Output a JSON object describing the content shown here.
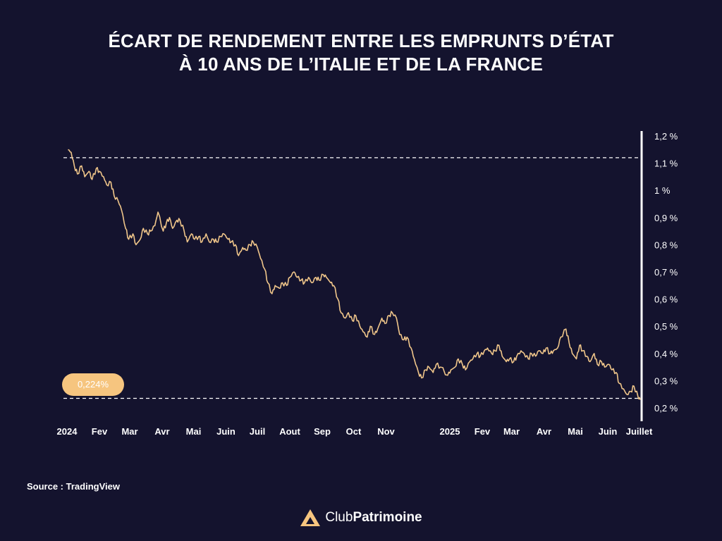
{
  "title": {
    "line1": "ÉCART DE RENDEMENT ENTRE LES EMPRUNTS D’ÉTAT",
    "line2": "À 10 ANS DE L’ITALIE ET DE LA FRANCE"
  },
  "last_value_label": "0,224%",
  "source": "Source : TradingView",
  "brand": {
    "part1": "Club",
    "part2": "Patrimoine"
  },
  "colors": {
    "background": "#14132e",
    "line": "#f0c68a",
    "badge": "#f6c57f",
    "logo": "#f6c57f"
  },
  "chart_data": {
    "type": "line",
    "title": "ÉCART DE RENDEMENT ENTRE LES EMPRUNTS D’ÉTAT À 10 ANS DE L’ITALIE ET DE LA FRANCE",
    "xlabel": "",
    "ylabel": "",
    "y_axis_side": "right",
    "ylim": [
      0.2,
      1.2
    ],
    "y_ticks": [
      1.2,
      1.1,
      1.0,
      0.9,
      0.8,
      0.7,
      0.6,
      0.5,
      0.4,
      0.3,
      0.2
    ],
    "y_tick_labels": [
      "1,2 %",
      "1,1 %",
      "1 %",
      "0,9 %",
      "0,8 %",
      "0,7 %",
      "0,6 %",
      "0,5 %",
      "0,4 %",
      "0,3 %",
      "0,2 %"
    ],
    "x_tick_labels": [
      "2024",
      "Fev",
      "Mar",
      "Avr",
      "Mai",
      "Juin",
      "Juil",
      "Aout",
      "Sep",
      "Oct",
      "Nov",
      "2025",
      "Fev",
      "Mar",
      "Avr",
      "Mai",
      "Juin",
      "Juillet"
    ],
    "x_tick_dates": [
      "2024-01-01",
      "2024-02-01",
      "2024-03-01",
      "2024-04-01",
      "2024-05-01",
      "2024-06-01",
      "2024-07-01",
      "2024-08-01",
      "2024-09-01",
      "2024-10-01",
      "2024-11-01",
      "2025-01-01",
      "2025-02-01",
      "2025-03-01",
      "2025-04-01",
      "2025-05-01",
      "2025-06-01",
      "2025-07-01"
    ],
    "reference_lines": [
      {
        "value": 1.12,
        "style": "dashed"
      },
      {
        "value": 0.235,
        "style": "dashed"
      }
    ],
    "last_value": 0.224,
    "series": [
      {
        "x": [
          "2024-01-02",
          "2024-01-05",
          "2024-01-08",
          "2024-01-11",
          "2024-01-15",
          "2024-01-18",
          "2024-01-22",
          "2024-01-25",
          "2024-01-29",
          "2024-02-01",
          "2024-02-05",
          "2024-02-08",
          "2024-02-12",
          "2024-02-15",
          "2024-02-19",
          "2024-02-22",
          "2024-02-26",
          "2024-02-29",
          "2024-03-04",
          "2024-03-07",
          "2024-03-11",
          "2024-03-14",
          "2024-03-18",
          "2024-03-21",
          "2024-03-25",
          "2024-03-28",
          "2024-04-02",
          "2024-04-05",
          "2024-04-08",
          "2024-04-11",
          "2024-04-15",
          "2024-04-18",
          "2024-04-22",
          "2024-04-25",
          "2024-04-29",
          "2024-05-02",
          "2024-05-06",
          "2024-05-09",
          "2024-05-13",
          "2024-05-16",
          "2024-05-20",
          "2024-05-23",
          "2024-05-27",
          "2024-05-30",
          "2024-06-03",
          "2024-06-06",
          "2024-06-10",
          "2024-06-13",
          "2024-06-17",
          "2024-06-20",
          "2024-06-24",
          "2024-06-27",
          "2024-07-01",
          "2024-07-04",
          "2024-07-08",
          "2024-07-11",
          "2024-07-15",
          "2024-07-18",
          "2024-07-22",
          "2024-07-25",
          "2024-07-29",
          "2024-08-01",
          "2024-08-05",
          "2024-08-08",
          "2024-08-12",
          "2024-08-15",
          "2024-08-19",
          "2024-08-22",
          "2024-08-26",
          "2024-08-29",
          "2024-09-02",
          "2024-09-05",
          "2024-09-09",
          "2024-09-12",
          "2024-09-16",
          "2024-09-19",
          "2024-09-23",
          "2024-09-26",
          "2024-09-30",
          "2024-10-03",
          "2024-10-07",
          "2024-10-10",
          "2024-10-14",
          "2024-10-17",
          "2024-10-21",
          "2024-10-24",
          "2024-10-28",
          "2024-10-31",
          "2024-11-04",
          "2024-11-07",
          "2024-11-11",
          "2024-11-14",
          "2024-11-18",
          "2024-11-21",
          "2024-11-25",
          "2024-11-28",
          "2024-12-02",
          "2024-12-05",
          "2024-12-09",
          "2024-12-12",
          "2024-12-16",
          "2024-12-19",
          "2024-12-23",
          "2024-12-30",
          "2025-01-02",
          "2025-01-06",
          "2025-01-09",
          "2025-01-13",
          "2025-01-16",
          "2025-01-20",
          "2025-01-23",
          "2025-01-27",
          "2025-01-30",
          "2025-02-03",
          "2025-02-06",
          "2025-02-10",
          "2025-02-13",
          "2025-02-17",
          "2025-02-20",
          "2025-02-24",
          "2025-02-27",
          "2025-03-03",
          "2025-03-06",
          "2025-03-10",
          "2025-03-13",
          "2025-03-17",
          "2025-03-20",
          "2025-03-24",
          "2025-03-27",
          "2025-03-31",
          "2025-04-03",
          "2025-04-07",
          "2025-04-10",
          "2025-04-14",
          "2025-04-17",
          "2025-04-22",
          "2025-04-25",
          "2025-04-28",
          "2025-05-02",
          "2025-05-05",
          "2025-05-08",
          "2025-05-12",
          "2025-05-15",
          "2025-05-19",
          "2025-05-22",
          "2025-05-26",
          "2025-05-29",
          "2025-06-02",
          "2025-06-05",
          "2025-06-09",
          "2025-06-12",
          "2025-06-16",
          "2025-06-19",
          "2025-06-23",
          "2025-06-26",
          "2025-06-30",
          "2025-07-02"
        ],
        "y": [
          1.15,
          1.14,
          1.09,
          1.06,
          1.09,
          1.05,
          1.07,
          1.04,
          1.08,
          1.07,
          1.05,
          1.02,
          1.03,
          0.98,
          0.96,
          0.93,
          0.86,
          0.82,
          0.84,
          0.8,
          0.82,
          0.86,
          0.84,
          0.85,
          0.87,
          0.92,
          0.85,
          0.88,
          0.9,
          0.86,
          0.89,
          0.89,
          0.85,
          0.81,
          0.84,
          0.82,
          0.83,
          0.81,
          0.84,
          0.81,
          0.82,
          0.81,
          0.83,
          0.84,
          0.82,
          0.81,
          0.8,
          0.76,
          0.79,
          0.78,
          0.8,
          0.81,
          0.79,
          0.75,
          0.71,
          0.66,
          0.62,
          0.65,
          0.64,
          0.66,
          0.65,
          0.68,
          0.7,
          0.68,
          0.67,
          0.66,
          0.68,
          0.66,
          0.68,
          0.67,
          0.69,
          0.68,
          0.66,
          0.65,
          0.6,
          0.55,
          0.53,
          0.55,
          0.52,
          0.54,
          0.5,
          0.48,
          0.46,
          0.5,
          0.47,
          0.49,
          0.53,
          0.51,
          0.54,
          0.55,
          0.53,
          0.47,
          0.45,
          0.46,
          0.42,
          0.38,
          0.33,
          0.31,
          0.34,
          0.35,
          0.33,
          0.36,
          0.35,
          0.32,
          0.34,
          0.35,
          0.38,
          0.36,
          0.34,
          0.37,
          0.38,
          0.4,
          0.39,
          0.41,
          0.42,
          0.4,
          0.41,
          0.43,
          0.39,
          0.37,
          0.38,
          0.37,
          0.39,
          0.41,
          0.4,
          0.38,
          0.4,
          0.39,
          0.41,
          0.4,
          0.42,
          0.4,
          0.41,
          0.42,
          0.46,
          0.49,
          0.44,
          0.4,
          0.38,
          0.43,
          0.41,
          0.39,
          0.37,
          0.4,
          0.36,
          0.37,
          0.35,
          0.36,
          0.34,
          0.33,
          0.29,
          0.27,
          0.25,
          0.26,
          0.28,
          0.24,
          0.23
        ]
      }
    ]
  }
}
